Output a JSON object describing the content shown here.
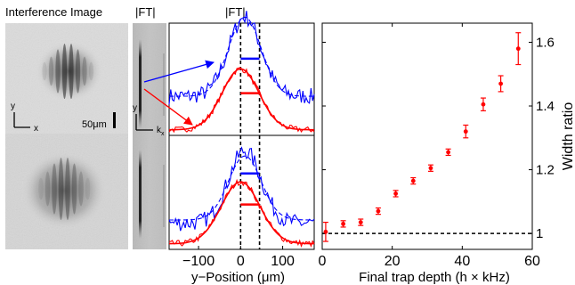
{
  "labels": {
    "interference_image": "Interference Image",
    "ft_narrow": "|FT|",
    "ft_profiles": "|FT|",
    "axis_y": "y",
    "axis_x": "x",
    "axis_ky": "y",
    "axis_kx": "k",
    "axis_kx_sub": "x",
    "scale_bar": "50μm"
  },
  "colors": {
    "blue": "#0000ff",
    "red": "#ff0000",
    "axis": "#000000"
  },
  "chart_data": [
    {
      "type": "line",
      "title": "",
      "xlabel": "y−Position (μm)",
      "ylabel": "",
      "xlim": [
        -170,
        175
      ],
      "xticks": [
        -100,
        0,
        100
      ],
      "xtick_labels": [
        "−100",
        "0",
        "100"
      ],
      "vlines": [
        0,
        45
      ],
      "panels": [
        {
          "name": "top",
          "series": [
            {
              "name": "",
              "color": "blue",
              "style": "noisy",
              "center": 10,
              "width": 55,
              "amplitude": 0.78,
              "offset": 0.35
            },
            {
              "name": "",
              "color": "blue",
              "style": "dashed",
              "center": 10,
              "width": 55,
              "amplitude": 0.78,
              "offset": 0.35
            },
            {
              "name": "",
              "color": "red",
              "style": "noisy",
              "center": 0,
              "width": 62,
              "amplitude": 0.6,
              "offset": 0.02
            },
            {
              "name": "",
              "color": "red",
              "style": "smooth",
              "center": 0,
              "width": 62,
              "amplitude": 0.6,
              "offset": 0.02
            }
          ],
          "width_markers": [
            {
              "color": "blue",
              "x0": 0,
              "x1": 45,
              "y": 0.72
            },
            {
              "color": "red",
              "x0": 0,
              "x1": 45,
              "y": 0.38
            }
          ]
        },
        {
          "name": "bottom",
          "series": [
            {
              "name": "",
              "color": "blue",
              "style": "noisy",
              "center": 10,
              "width": 55,
              "amplitude": 0.7,
              "offset": 0.22
            },
            {
              "name": "",
              "color": "blue",
              "style": "dashed",
              "center": 10,
              "width": 55,
              "amplitude": 0.62,
              "offset": 0.25
            },
            {
              "name": "",
              "color": "red",
              "style": "noisy",
              "center": 0,
              "width": 65,
              "amplitude": 0.6,
              "offset": 0.02
            },
            {
              "name": "",
              "color": "red",
              "style": "smooth",
              "center": 0,
              "width": 65,
              "amplitude": 0.6,
              "offset": 0.02
            }
          ],
          "width_markers": [
            {
              "color": "blue",
              "x0": 0,
              "x1": 45,
              "y": 0.7
            },
            {
              "color": "red",
              "x0": 0,
              "x1": 45,
              "y": 0.4
            }
          ]
        }
      ]
    },
    {
      "type": "scatter",
      "title": "",
      "xlabel": "Final trap depth (h × kHz)",
      "ylabel": "Width ratio",
      "xlim": [
        0,
        60
      ],
      "ylim": [
        0.95,
        1.66
      ],
      "xticks": [
        0,
        20,
        40,
        60
      ],
      "yticks": [
        1.0,
        1.2,
        1.4,
        1.6
      ],
      "reference_line": 1.0,
      "series": [
        {
          "name": "",
          "color": "red",
          "x": [
            1,
            6,
            11,
            16,
            21,
            26,
            31,
            36,
            41,
            46,
            51,
            56
          ],
          "y": [
            1.005,
            1.03,
            1.035,
            1.07,
            1.125,
            1.165,
            1.205,
            1.255,
            1.32,
            1.405,
            1.47,
            1.58
          ],
          "err": [
            0.03,
            0.01,
            0.01,
            0.01,
            0.01,
            0.01,
            0.01,
            0.01,
            0.02,
            0.02,
            0.025,
            0.05
          ]
        }
      ]
    }
  ]
}
